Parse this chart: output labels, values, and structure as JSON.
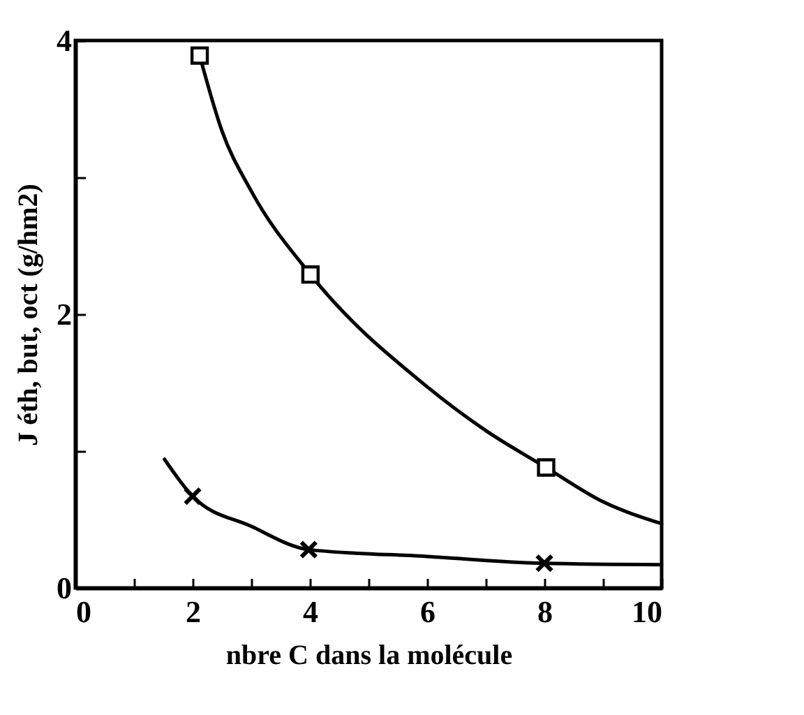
{
  "chart_data": {
    "type": "line",
    "xlabel": "nbre C dans la molécule",
    "ylabel": "J éth, but, oct (g/hm2)",
    "xlim": [
      0,
      10
    ],
    "ylim": [
      0,
      4
    ],
    "xticks": [
      0,
      {
        "value": 1,
        "label": null
      },
      2,
      {
        "value": 3,
        "label": null
      },
      4,
      {
        "value": 5,
        "label": null
      },
      6,
      {
        "value": 7,
        "label": null
      },
      8,
      {
        "value": 9,
        "label": null
      },
      10
    ],
    "yticks": [
      0,
      {
        "value": 1,
        "label": null
      },
      2,
      {
        "value": 3,
        "label": null
      },
      4
    ],
    "grid": false,
    "series": [
      {
        "type": "line",
        "color": "#000000",
        "marker": "none",
        "line_style": "solid",
        "x": [
          2.12,
          2.5,
          3,
          4.01,
          6,
          7,
          8.03,
          9,
          10
        ],
        "values": [
          3.89,
          3.34,
          2.9,
          2.29,
          1.47,
          1.15,
          0.88,
          0.63,
          0.47
        ]
      },
      {
        "type": "line",
        "color": "#000000",
        "marker": "none",
        "line_style": "solid",
        "x": [
          1.52,
          2,
          3,
          3.98,
          6,
          8,
          10
        ],
        "values": [
          0.94,
          0.67,
          0.45,
          0.28,
          0.23,
          0.18,
          0.17
        ]
      },
      {
        "type": "scatter",
        "color": "#000000",
        "marker": "square",
        "x": [
          2.12,
          4.01,
          8.03
        ],
        "values": [
          3.89,
          2.29,
          0.88
        ]
      },
      {
        "type": "scatter",
        "color": "#000000",
        "marker": "cross",
        "x": [
          2,
          3.98,
          8
        ],
        "values": [
          0.67,
          0.28,
          0.18
        ]
      }
    ]
  }
}
